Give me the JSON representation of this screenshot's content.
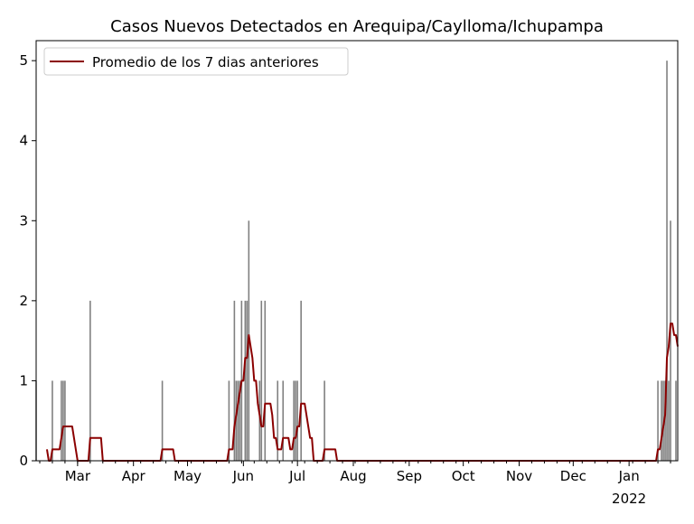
{
  "chart_data": {
    "type": "bar",
    "title": "Casos Nuevos Detectados en Arequipa/Caylloma/Ichupampa",
    "xlabel": "",
    "ylabel": "",
    "xlim": [
      "2021-02-06",
      "2022-01-28"
    ],
    "ylim": [
      0,
      5.25
    ],
    "yticks": [
      0,
      1,
      2,
      3,
      4,
      5
    ],
    "xticks": [
      {
        "date": "2021-03-01",
        "label": "Mar"
      },
      {
        "date": "2021-04-01",
        "label": "Apr"
      },
      {
        "date": "2021-05-01",
        "label": "May"
      },
      {
        "date": "2021-06-01",
        "label": "Jun"
      },
      {
        "date": "2021-07-01",
        "label": "Jul"
      },
      {
        "date": "2021-08-01",
        "label": "Aug"
      },
      {
        "date": "2021-09-01",
        "label": "Sep"
      },
      {
        "date": "2021-10-01",
        "label": "Oct"
      },
      {
        "date": "2021-11-01",
        "label": "Nov"
      },
      {
        "date": "2021-12-01",
        "label": "Dec"
      },
      {
        "date": "2022-01-01",
        "label": "Jan",
        "sublabel": "2022"
      }
    ],
    "grid": false,
    "legend": {
      "position": "top-left",
      "entries": [
        "Promedio de los 7 dias anteriores"
      ]
    },
    "colors": {
      "bars": "#808080",
      "line": "#8b0000"
    },
    "date_range": [
      "2021-02-06",
      "2022-01-28"
    ],
    "daily_cases": [
      {
        "date": "2021-02-06",
        "value": 1
      },
      {
        "date": "2021-02-15",
        "value": 1
      },
      {
        "date": "2021-02-20",
        "value": 1
      },
      {
        "date": "2021-02-21",
        "value": 1
      },
      {
        "date": "2021-02-22",
        "value": 1
      },
      {
        "date": "2021-03-08",
        "value": 2
      },
      {
        "date": "2021-04-17",
        "value": 1
      },
      {
        "date": "2021-05-24",
        "value": 1
      },
      {
        "date": "2021-05-27",
        "value": 2
      },
      {
        "date": "2021-05-28",
        "value": 1
      },
      {
        "date": "2021-05-29",
        "value": 1
      },
      {
        "date": "2021-05-30",
        "value": 1
      },
      {
        "date": "2021-05-31",
        "value": 2
      },
      {
        "date": "2021-06-02",
        "value": 2
      },
      {
        "date": "2021-06-03",
        "value": 2
      },
      {
        "date": "2021-06-04",
        "value": 3
      },
      {
        "date": "2021-06-10",
        "value": 1
      },
      {
        "date": "2021-06-11",
        "value": 2
      },
      {
        "date": "2021-06-13",
        "value": 2
      },
      {
        "date": "2021-06-20",
        "value": 1
      },
      {
        "date": "2021-06-23",
        "value": 1
      },
      {
        "date": "2021-06-29",
        "value": 1
      },
      {
        "date": "2021-06-30",
        "value": 1
      },
      {
        "date": "2021-07-01",
        "value": 1
      },
      {
        "date": "2021-07-03",
        "value": 2
      },
      {
        "date": "2021-07-16",
        "value": 1
      },
      {
        "date": "2022-01-17",
        "value": 1
      },
      {
        "date": "2022-01-19",
        "value": 1
      },
      {
        "date": "2022-01-20",
        "value": 1
      },
      {
        "date": "2022-01-21",
        "value": 1
      },
      {
        "date": "2022-01-22",
        "value": 5
      },
      {
        "date": "2022-01-23",
        "value": 1
      },
      {
        "date": "2022-01-24",
        "value": 3
      },
      {
        "date": "2022-01-27",
        "value": 1
      }
    ],
    "series": [
      {
        "name": "Promedio de los 7 dias anteriores",
        "type": "line",
        "window_days": 7
      }
    ]
  }
}
